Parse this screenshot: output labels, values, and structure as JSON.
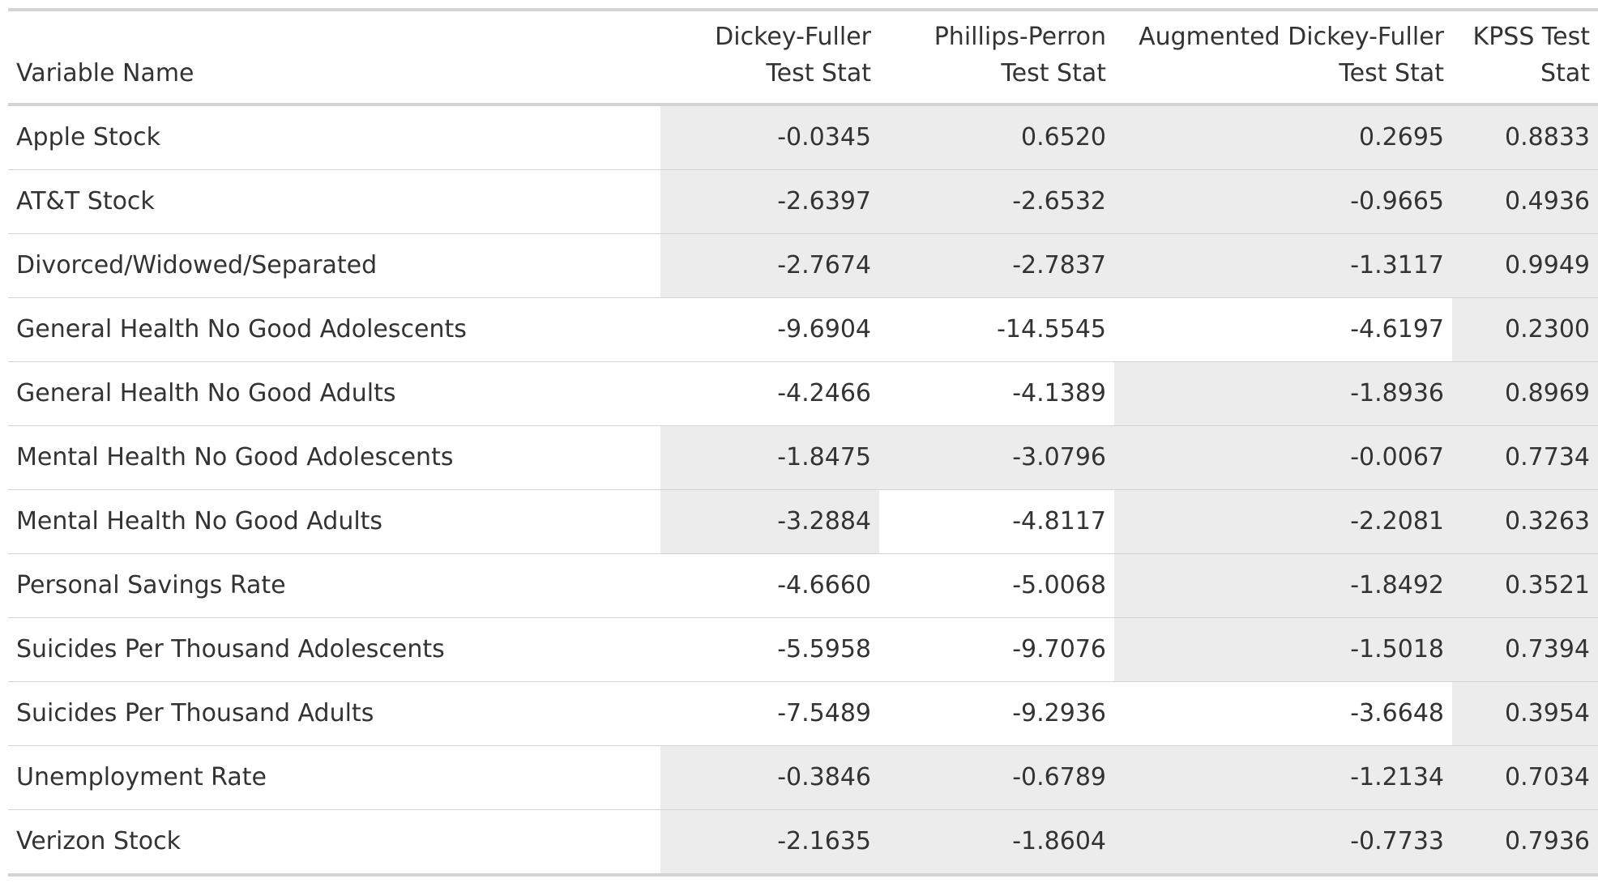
{
  "table": {
    "columns": [
      "Variable Name",
      "Dickey-Fuller Test Stat",
      "Phillips-Perron Test Stat",
      "Augmented Dickey-Fuller Test Stat",
      "KPSS Test Stat"
    ],
    "rows": [
      {
        "name": "Apple Stock",
        "values": [
          "-0.0345",
          "0.6520",
          "0.2695",
          "0.8833"
        ],
        "shaded": [
          true,
          true,
          true,
          true
        ]
      },
      {
        "name": "AT&T Stock",
        "values": [
          "-2.6397",
          "-2.6532",
          "-0.9665",
          "0.4936"
        ],
        "shaded": [
          true,
          true,
          true,
          true
        ]
      },
      {
        "name": "Divorced/Widowed/Separated",
        "values": [
          "-2.7674",
          "-2.7837",
          "-1.3117",
          "0.9949"
        ],
        "shaded": [
          true,
          true,
          true,
          true
        ]
      },
      {
        "name": "General Health No Good Adolescents",
        "values": [
          "-9.6904",
          "-14.5545",
          "-4.6197",
          "0.2300"
        ],
        "shaded": [
          false,
          false,
          false,
          true
        ]
      },
      {
        "name": "General Health No Good Adults",
        "values": [
          "-4.2466",
          "-4.1389",
          "-1.8936",
          "0.8969"
        ],
        "shaded": [
          false,
          false,
          true,
          true
        ]
      },
      {
        "name": "Mental Health No Good Adolescents",
        "values": [
          "-1.8475",
          "-3.0796",
          "-0.0067",
          "0.7734"
        ],
        "shaded": [
          true,
          true,
          true,
          true
        ]
      },
      {
        "name": "Mental Health No Good Adults",
        "values": [
          "-3.2884",
          "-4.8117",
          "-2.2081",
          "0.3263"
        ],
        "shaded": [
          true,
          false,
          true,
          true
        ]
      },
      {
        "name": "Personal Savings Rate",
        "values": [
          "-4.6660",
          "-5.0068",
          "-1.8492",
          "0.3521"
        ],
        "shaded": [
          false,
          false,
          true,
          true
        ]
      },
      {
        "name": "Suicides Per Thousand Adolescents",
        "values": [
          "-5.5958",
          "-9.7076",
          "-1.5018",
          "0.7394"
        ],
        "shaded": [
          false,
          false,
          true,
          true
        ]
      },
      {
        "name": "Suicides Per Thousand Adults",
        "values": [
          "-7.5489",
          "-9.2936",
          "-3.6648",
          "0.3954"
        ],
        "shaded": [
          false,
          false,
          false,
          true
        ]
      },
      {
        "name": "Unemployment Rate",
        "values": [
          "-0.3846",
          "-0.6789",
          "-1.2134",
          "0.7034"
        ],
        "shaded": [
          true,
          true,
          true,
          true
        ]
      },
      {
        "name": "Verizon Stock",
        "values": [
          "-2.1635",
          "-1.8604",
          "-0.7733",
          "0.7936"
        ],
        "shaded": [
          true,
          true,
          true,
          true
        ]
      }
    ]
  },
  "colors": {
    "shade": "#ececec",
    "rule": "#d3d3d3",
    "text": "#333333"
  }
}
